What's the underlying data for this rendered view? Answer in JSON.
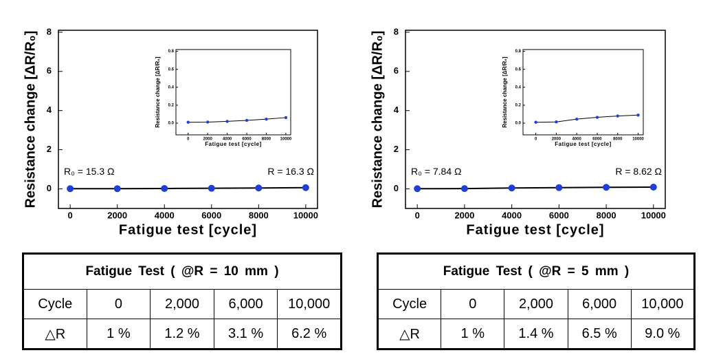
{
  "chart_data": [
    {
      "type": "line",
      "xlabel": "Fatigue test [cycle]",
      "ylabel": "Resistance change [ΔR/R₀]",
      "x": [
        0,
        2000,
        4000,
        6000,
        8000,
        10000
      ],
      "values": [
        0.01,
        0.012,
        0.02,
        0.031,
        0.045,
        0.062
      ],
      "color": "#1f3fd6",
      "xlim": [
        -500,
        10500
      ],
      "ylim": [
        -1,
        8.1
      ],
      "xticks": [
        0,
        2000,
        4000,
        6000,
        8000,
        10000
      ],
      "yticks": [
        0,
        2,
        4,
        6,
        8
      ],
      "annotations": [
        "R₀ = 15.3 Ω",
        "R = 16.3 Ω"
      ]
    },
    {
      "type": "line",
      "xlabel": "Fatigue test [cycle]",
      "ylabel": "Resistance change [ΔR/R₀]",
      "x": [
        0,
        2000,
        4000,
        6000,
        8000,
        10000
      ],
      "values": [
        0.01,
        0.012,
        0.02,
        0.031,
        0.045,
        0.062
      ],
      "color": "#1f3fd6",
      "xlim": [
        -1250,
        10500
      ],
      "ylim": [
        -0.13,
        0.82
      ],
      "xticks": [
        0,
        2000,
        4000,
        6000,
        8000,
        10000
      ],
      "yticks": [
        {
          "value": 0,
          "label": "0.0"
        },
        {
          "value": 0.2,
          "label": "0.2"
        },
        {
          "value": 0.4,
          "label": "0.4"
        },
        {
          "value": 0.6,
          "label": "0.6"
        },
        {
          "value": 0.8,
          "label": "0.8"
        }
      ]
    },
    {
      "type": "line",
      "xlabel": "Fatigue test [cycle]",
      "ylabel": "Resistance change [ΔR/R₀]",
      "x": [
        0,
        2000,
        4000,
        6000,
        8000,
        10000
      ],
      "values": [
        0.01,
        0.014,
        0.045,
        0.065,
        0.08,
        0.09
      ],
      "color": "#1f3fd6",
      "xlim": [
        -500,
        10500
      ],
      "ylim": [
        -1,
        8.1
      ],
      "xticks": [
        0,
        2000,
        4000,
        6000,
        8000,
        10000
      ],
      "yticks": [
        0,
        2,
        4,
        6,
        8
      ],
      "annotations": [
        "R₀ = 7.84 Ω",
        "R = 8.62 Ω"
      ]
    },
    {
      "type": "line",
      "xlabel": "Fatigue test [cycle]",
      "ylabel": "Resistance change [ΔR/R₀]",
      "x": [
        0,
        2000,
        4000,
        6000,
        8000,
        10000
      ],
      "values": [
        0.01,
        0.014,
        0.045,
        0.065,
        0.08,
        0.09
      ],
      "color": "#1f3fd6",
      "xlim": [
        -1250,
        10500
      ],
      "ylim": [
        -0.13,
        0.82
      ],
      "xticks": [
        0,
        2000,
        4000,
        6000,
        8000,
        10000
      ],
      "yticks": [
        {
          "value": 0,
          "label": "0.0"
        },
        {
          "value": 0.2,
          "label": "0.2"
        },
        {
          "value": 0.4,
          "label": "0.4"
        },
        {
          "value": 0.6,
          "label": "0.6"
        },
        {
          "value": 0.8,
          "label": "0.8"
        }
      ]
    }
  ],
  "tables": [
    {
      "title": "Fatigue Test ( @R = 10 mm )",
      "rows": [
        [
          "Cycle",
          "0",
          "2,000",
          "6,000",
          "10,000"
        ],
        [
          "△R",
          "1 %",
          "1.2 %",
          "3.1 %",
          "6.2 %"
        ]
      ]
    },
    {
      "title": "Fatigue Test ( @R = 5 mm )",
      "rows": [
        [
          "Cycle",
          "0",
          "2,000",
          "6,000",
          "10,000"
        ],
        [
          "△R",
          "1 %",
          "1.4 %",
          "6.5 %",
          "9.0 %"
        ]
      ]
    }
  ]
}
